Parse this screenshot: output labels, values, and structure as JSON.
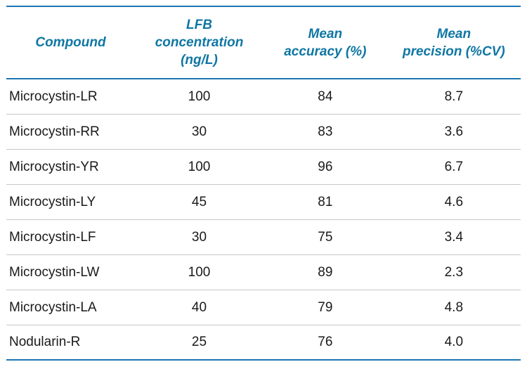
{
  "table": {
    "headers": {
      "compound": {
        "label": "Compound",
        "lines": [
          "Compound"
        ]
      },
      "lfb": {
        "label": "LFB concentration (ng/L)",
        "lines": [
          "LFB",
          "concentration",
          "(ng/L)"
        ]
      },
      "accuracy": {
        "label": "Mean accuracy (%)",
        "lines": [
          "Mean",
          "accuracy (%)"
        ]
      },
      "precision": {
        "label": "Mean precision (%CV)",
        "lines": [
          "Mean",
          "precision (%CV)"
        ]
      }
    },
    "rows": [
      {
        "compound": "Microcystin-LR",
        "lfb": "100",
        "accuracy": "84",
        "precision": "8.7"
      },
      {
        "compound": "Microcystin-RR",
        "lfb": "30",
        "accuracy": "83",
        "precision": "3.6"
      },
      {
        "compound": "Microcystin-YR",
        "lfb": "100",
        "accuracy": "96",
        "precision": "6.7"
      },
      {
        "compound": "Microcystin-LY",
        "lfb": "45",
        "accuracy": "81",
        "precision": "4.6"
      },
      {
        "compound": "Microcystin-LF",
        "lfb": "30",
        "accuracy": "75",
        "precision": "3.4"
      },
      {
        "compound": "Microcystin-LW",
        "lfb": "100",
        "accuracy": "89",
        "precision": "2.3"
      },
      {
        "compound": "Microcystin-LA",
        "lfb": "40",
        "accuracy": "79",
        "precision": "4.8"
      },
      {
        "compound": "Nodularin-R",
        "lfb": "25",
        "accuracy": "76",
        "precision": "4.0"
      }
    ]
  },
  "colors": {
    "accent_line": "#1d76b2",
    "header_text": "#0f77a4",
    "row_text": "#1a1a1a",
    "separator": "#c6c6c6",
    "background": "#ffffff"
  }
}
